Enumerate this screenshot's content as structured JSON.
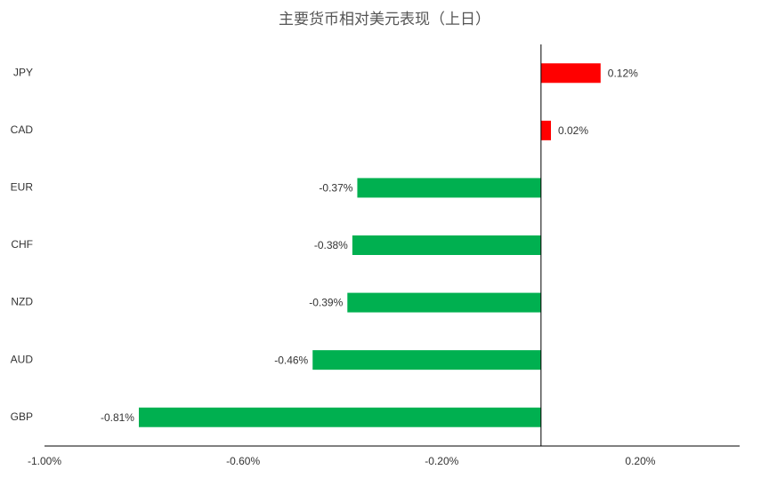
{
  "chart_data": {
    "type": "hbar",
    "title": "主要货币相对美元表现（上日）",
    "categories": [
      "JPY",
      "CAD",
      "EUR",
      "CHF",
      "NZD",
      "AUD",
      "GBP"
    ],
    "values": [
      0.12,
      0.02,
      -0.37,
      -0.38,
      -0.39,
      -0.46,
      -0.81
    ],
    "value_labels": [
      "0.12%",
      "0.02%",
      "-0.37%",
      "-0.38%",
      "-0.39%",
      "-0.46%",
      "-0.81%"
    ],
    "color_positive": "#ff0000",
    "color_negative": "#00b050",
    "xlim": [
      -1.0,
      0.4
    ],
    "xticks": [
      {
        "value": -1.0,
        "label": "-1.00%"
      },
      {
        "value": -0.6,
        "label": "-0.60%"
      },
      {
        "value": -0.2,
        "label": "-0.20%"
      },
      {
        "value": 0.2,
        "label": "0.20%"
      }
    ],
    "grid": false
  }
}
